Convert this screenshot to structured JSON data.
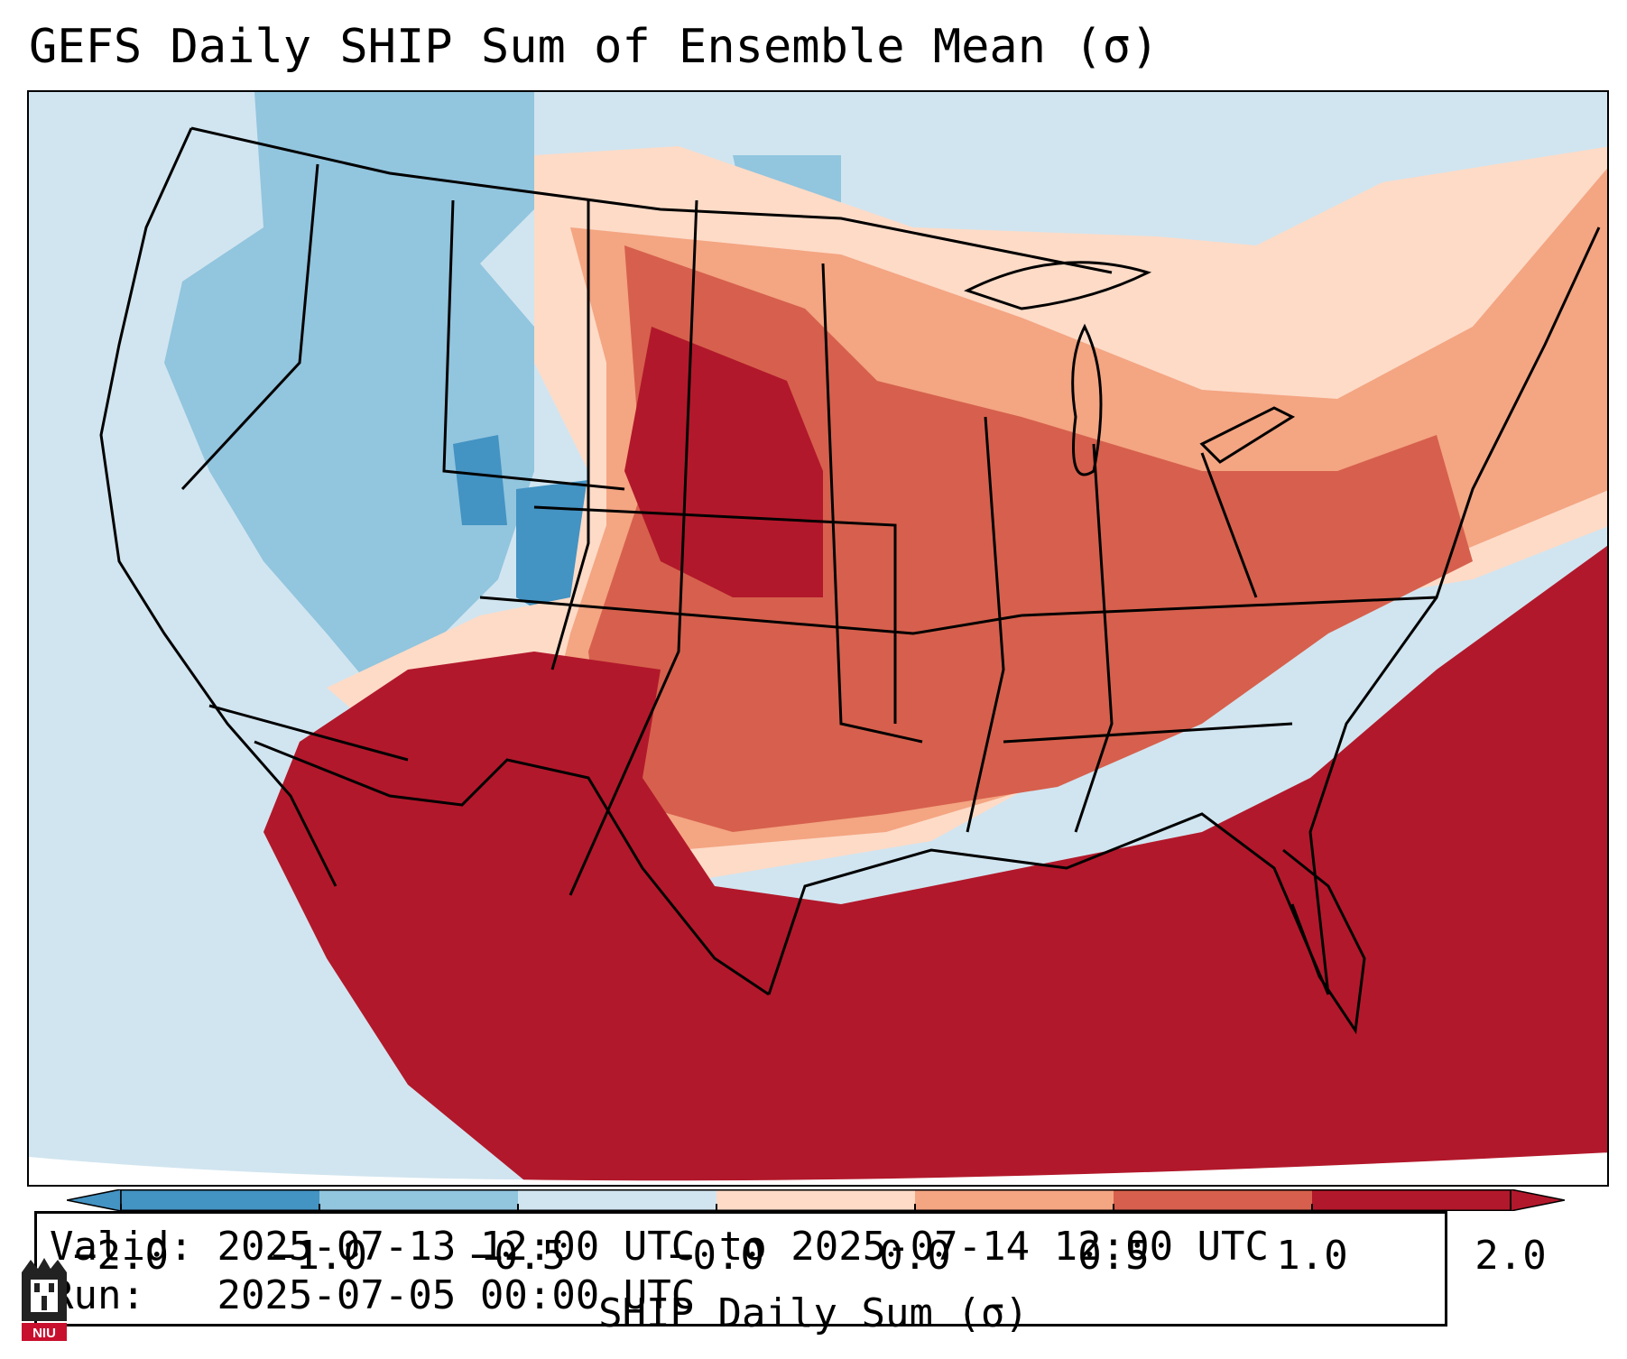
{
  "title": "GEFS Daily SHIP Sum of Ensemble Mean (σ)",
  "info": {
    "valid_label": "Valid:",
    "valid_value": "2025-07-13 12:00 UTC to 2025-07-14 12:00 UTC",
    "run_label": "Run:",
    "run_value": "2025-07-05 00:00 UTC"
  },
  "colorbar": {
    "label": "SHIP Daily Sum (σ)",
    "ticks": [
      "−2.0",
      "−1.0",
      "−0.5",
      "−0.0",
      "0.0",
      "0.5",
      "1.0",
      "2.0"
    ],
    "colors": [
      "#4393c3",
      "#92c5de",
      "#d1e5f0",
      "#ffffff",
      "#fddbc7",
      "#f4a582",
      "#d6604d",
      "#b2182b"
    ],
    "extend": "both"
  },
  "logo": {
    "text": "NIU",
    "icon": "niu-logo-icon"
  }
}
